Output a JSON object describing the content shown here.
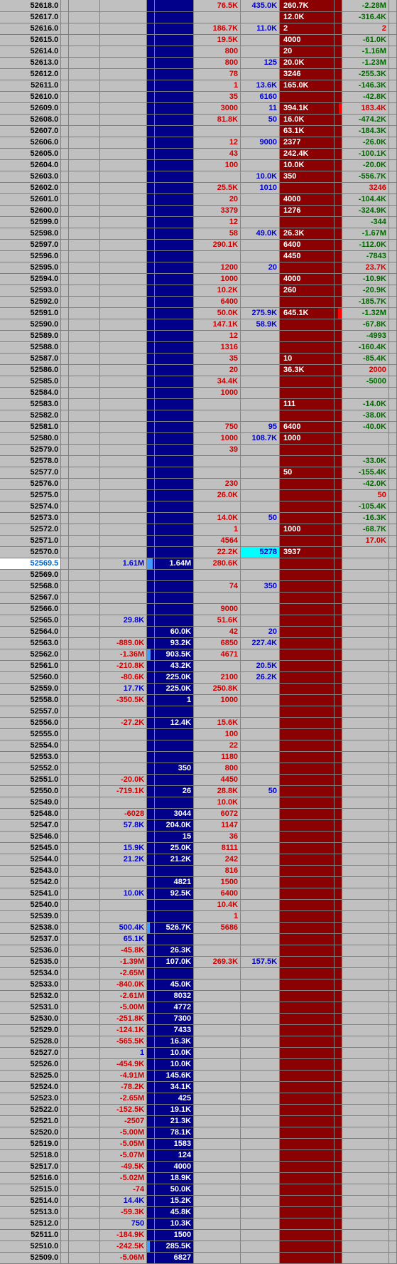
{
  "highlightId": "52569.5",
  "rows": [
    {
      "id": "52618.0",
      "c6": "76.5K",
      "c6c": "#cc0000",
      "c7": "435.0K",
      "c7c": "#0000cc",
      "c8": "260.7K",
      "c10": "-2.28M",
      "c10c": "#006600"
    },
    {
      "id": "52617.0",
      "c8": "12.0K",
      "c10": "-316.4K",
      "c10c": "#006600"
    },
    {
      "id": "52616.0",
      "c6": "186.7K",
      "c6c": "#cc0000",
      "c7": "11.0K",
      "c7c": "#0000cc",
      "c8": "2",
      "c10": "2",
      "c10c": "#cc0000"
    },
    {
      "id": "52615.0",
      "c6": "19.5K",
      "c6c": "#cc0000",
      "c8": "4000",
      "c10": "-61.0K",
      "c10c": "#006600"
    },
    {
      "id": "52614.0",
      "c6": "800",
      "c6c": "#cc0000",
      "c8": "20",
      "c10": "-1.16M",
      "c10c": "#006600"
    },
    {
      "id": "52613.0",
      "c6": "800",
      "c6c": "#cc0000",
      "c7": "125",
      "c7c": "#0000cc",
      "c8": "20.0K",
      "c10": "-1.23M",
      "c10c": "#006600"
    },
    {
      "id": "52612.0",
      "c6": "78",
      "c6c": "#cc0000",
      "c8": "3246",
      "c10": "-255.3K",
      "c10c": "#006600"
    },
    {
      "id": "52611.0",
      "c6": "1",
      "c6c": "#cc0000",
      "c7": "13.6K",
      "c7c": "#0000cc",
      "c8": "165.0K",
      "c10": "-146.3K",
      "c10c": "#006600"
    },
    {
      "id": "52610.0",
      "c6": "35",
      "c6c": "#cc0000",
      "c7": "6160",
      "c7c": "#0000cc",
      "c10": "-42.8K",
      "c10c": "#006600"
    },
    {
      "id": "52609.0",
      "c6": "3000",
      "c6c": "#cc0000",
      "c7": "11",
      "c7c": "#0000cc",
      "c8": "394.1K",
      "c9bar": 4,
      "c10": "183.4K",
      "c10c": "#cc0000"
    },
    {
      "id": "52608.0",
      "c6": "81.8K",
      "c6c": "#cc0000",
      "c7": "50",
      "c7c": "#0000cc",
      "c8": "16.0K",
      "c10": "-474.2K",
      "c10c": "#006600"
    },
    {
      "id": "52607.0",
      "c8": "63.1K",
      "c10": "-184.3K",
      "c10c": "#006600"
    },
    {
      "id": "52606.0",
      "c6": "12",
      "c6c": "#cc0000",
      "c7": "9000",
      "c7c": "#0000cc",
      "c8": "2377",
      "c10": "-26.0K",
      "c10c": "#006600"
    },
    {
      "id": "52605.0",
      "c6": "43",
      "c6c": "#cc0000",
      "c8": "242.4K",
      "c10": "-100.1K",
      "c10c": "#006600"
    },
    {
      "id": "52604.0",
      "c6": "100",
      "c6c": "#cc0000",
      "c8": "10.0K",
      "c10": "-20.0K",
      "c10c": "#006600"
    },
    {
      "id": "52603.0",
      "c7": "10.0K",
      "c7c": "#0000cc",
      "c8": "350",
      "c10": "-556.7K",
      "c10c": "#006600"
    },
    {
      "id": "52602.0",
      "c6": "25.5K",
      "c6c": "#cc0000",
      "c7": "1010",
      "c7c": "#0000cc",
      "c10": "3246",
      "c10c": "#cc0000"
    },
    {
      "id": "52601.0",
      "c6": "20",
      "c6c": "#cc0000",
      "c8": "4000",
      "c10": "-104.4K",
      "c10c": "#006600"
    },
    {
      "id": "52600.0",
      "c6": "3379",
      "c6c": "#cc0000",
      "c8": "1276",
      "c10": "-324.9K",
      "c10c": "#006600"
    },
    {
      "id": "52599.0",
      "c6": "12",
      "c6c": "#cc0000",
      "c10": "-344",
      "c10c": "#006600"
    },
    {
      "id": "52598.0",
      "c6": "58",
      "c6c": "#cc0000",
      "c7": "49.0K",
      "c7c": "#0000cc",
      "c8": "26.3K",
      "c10": "-1.67M",
      "c10c": "#006600"
    },
    {
      "id": "52597.0",
      "c6": "290.1K",
      "c6c": "#cc0000",
      "c8": "6400",
      "c10": "-112.0K",
      "c10c": "#006600"
    },
    {
      "id": "52596.0",
      "c8": "4450",
      "c10": "-7843",
      "c10c": "#006600"
    },
    {
      "id": "52595.0",
      "c6": "1200",
      "c6c": "#cc0000",
      "c7": "20",
      "c7c": "#0000cc",
      "c10": "23.7K",
      "c10c": "#cc0000"
    },
    {
      "id": "52594.0",
      "c6": "1000",
      "c6c": "#cc0000",
      "c8": "4000",
      "c10": "-10.9K",
      "c10c": "#006600"
    },
    {
      "id": "52593.0",
      "c6": "10.2K",
      "c6c": "#cc0000",
      "c8": "260",
      "c10": "-20.9K",
      "c10c": "#006600"
    },
    {
      "id": "52592.0",
      "c6": "6400",
      "c6c": "#cc0000",
      "c10": "-185.7K",
      "c10c": "#006600"
    },
    {
      "id": "52591.0",
      "c6": "50.0K",
      "c6c": "#cc0000",
      "c7": "275.9K",
      "c7c": "#0000cc",
      "c8": "645.1K",
      "c9bar": 5,
      "c10": "-1.32M",
      "c10c": "#006600"
    },
    {
      "id": "52590.0",
      "c6": "147.1K",
      "c6c": "#cc0000",
      "c7": "58.9K",
      "c7c": "#0000cc",
      "c10": "-67.8K",
      "c10c": "#006600"
    },
    {
      "id": "52589.0",
      "c6": "12",
      "c6c": "#cc0000",
      "c10": "-4993",
      "c10c": "#006600"
    },
    {
      "id": "52588.0",
      "c6": "1316",
      "c6c": "#cc0000",
      "c10": "-160.4K",
      "c10c": "#006600"
    },
    {
      "id": "52587.0",
      "c6": "35",
      "c6c": "#cc0000",
      "c8": "10",
      "c10": "-85.4K",
      "c10c": "#006600"
    },
    {
      "id": "52586.0",
      "c6": "20",
      "c6c": "#cc0000",
      "c8": "36.3K",
      "c10": "2000",
      "c10c": "#cc0000"
    },
    {
      "id": "52585.0",
      "c6": "34.4K",
      "c6c": "#cc0000",
      "c10": "-5000",
      "c10c": "#006600"
    },
    {
      "id": "52584.0",
      "c6": "1000",
      "c6c": "#cc0000"
    },
    {
      "id": "52583.0",
      "c8": "111",
      "c10": "-14.0K",
      "c10c": "#006600"
    },
    {
      "id": "52582.0",
      "c10": "-38.0K",
      "c10c": "#006600"
    },
    {
      "id": "52581.0",
      "c6": "750",
      "c6c": "#cc0000",
      "c7": "95",
      "c7c": "#0000cc",
      "c8": "6400",
      "c10": "-40.0K",
      "c10c": "#006600"
    },
    {
      "id": "52580.0",
      "c6": "1000",
      "c6c": "#cc0000",
      "c7": "108.7K",
      "c7c": "#0000cc",
      "c8": "1000"
    },
    {
      "id": "52579.0",
      "c6": "39",
      "c6c": "#cc0000"
    },
    {
      "id": "52578.0",
      "c10": "-33.0K",
      "c10c": "#006600"
    },
    {
      "id": "52577.0",
      "c8": "50",
      "c10": "-155.4K",
      "c10c": "#006600"
    },
    {
      "id": "52576.0",
      "c6": "230",
      "c6c": "#cc0000",
      "c10": "-42.0K",
      "c10c": "#006600"
    },
    {
      "id": "52575.0",
      "c6": "26.0K",
      "c6c": "#cc0000",
      "c10": "50",
      "c10c": "#cc0000"
    },
    {
      "id": "52574.0",
      "c10": "-105.4K",
      "c10c": "#006600"
    },
    {
      "id": "52573.0",
      "c6": "14.0K",
      "c6c": "#cc0000",
      "c7": "50",
      "c7c": "#0000cc",
      "c10": "-16.3K",
      "c10c": "#006600"
    },
    {
      "id": "52572.0",
      "c6": "1",
      "c6c": "#cc0000",
      "c8": "1000",
      "c10": "-68.7K",
      "c10c": "#006600"
    },
    {
      "id": "52571.0",
      "c6": "4564",
      "c6c": "#cc0000",
      "c10": "17.0K",
      "c10c": "#cc0000"
    },
    {
      "id": "52570.0",
      "c6": "22.2K",
      "c6c": "#cc0000",
      "c7": "5278",
      "c7c": "#0000cc",
      "c7hl": "cy",
      "c8": "3937"
    },
    {
      "id": "52569.5",
      "hl": true,
      "c3": "1.61M",
      "c3c": "#0000cc",
      "c4bar": 8,
      "c5": "1.64M",
      "c6": "280.6K",
      "c6c": "#cc0000"
    },
    {
      "id": "52569.0"
    },
    {
      "id": "52568.0",
      "c6": "74",
      "c6c": "#cc0000",
      "c7": "350",
      "c7c": "#0000cc"
    },
    {
      "id": "52567.0"
    },
    {
      "id": "52566.0",
      "c6": "9000",
      "c6c": "#cc0000"
    },
    {
      "id": "52565.0",
      "c3": "29.8K",
      "c3c": "#0000cc",
      "c6": "51.6K",
      "c6c": "#cc0000"
    },
    {
      "id": "52564.0",
      "c5": "60.0K",
      "c6": "42",
      "c6c": "#cc0000",
      "c7": "20",
      "c7c": "#0000cc"
    },
    {
      "id": "52563.0",
      "c3": "-889.0K",
      "c3c": "#cc0000",
      "c5": "93.2K",
      "c6": "6850",
      "c6c": "#cc0000",
      "c7": "227.4K",
      "c7c": "#0000cc"
    },
    {
      "id": "52562.0",
      "c3": "-1.36M",
      "c3c": "#cc0000",
      "c4bar": 5,
      "c5": "903.5K",
      "c6": "4671",
      "c6c": "#cc0000"
    },
    {
      "id": "52561.0",
      "c3": "-210.8K",
      "c3c": "#cc0000",
      "c5": "43.2K",
      "c7": "20.5K",
      "c7c": "#0000cc"
    },
    {
      "id": "52560.0",
      "c3": "-80.6K",
      "c3c": "#cc0000",
      "c5": "225.0K",
      "c6": "2100",
      "c6c": "#cc0000",
      "c7": "26.2K",
      "c7c": "#0000cc"
    },
    {
      "id": "52559.0",
      "c3": "17.7K",
      "c3c": "#0000cc",
      "c5": "225.0K",
      "c6": "250.8K",
      "c6c": "#cc0000"
    },
    {
      "id": "52558.0",
      "c3": "-350.5K",
      "c3c": "#cc0000",
      "c5": "1",
      "c6": "1000",
      "c6c": "#cc0000"
    },
    {
      "id": "52557.0"
    },
    {
      "id": "52556.0",
      "c3": "-27.2K",
      "c3c": "#cc0000",
      "c5": "12.4K",
      "c6": "15.6K",
      "c6c": "#cc0000"
    },
    {
      "id": "52555.0",
      "c6": "100",
      "c6c": "#cc0000"
    },
    {
      "id": "52554.0",
      "c6": "22",
      "c6c": "#cc0000"
    },
    {
      "id": "52553.0",
      "c6": "1180",
      "c6c": "#cc0000"
    },
    {
      "id": "52552.0",
      "c5": "350",
      "c6": "800",
      "c6c": "#cc0000"
    },
    {
      "id": "52551.0",
      "c3": "-20.0K",
      "c3c": "#cc0000",
      "c6": "4450",
      "c6c": "#cc0000"
    },
    {
      "id": "52550.0",
      "c3": "-719.1K",
      "c3c": "#cc0000",
      "c5": "26",
      "c6": "28.8K",
      "c6c": "#cc0000",
      "c7": "50",
      "c7c": "#0000cc"
    },
    {
      "id": "52549.0",
      "c6": "10.0K",
      "c6c": "#cc0000"
    },
    {
      "id": "52548.0",
      "c3": "-6028",
      "c3c": "#cc0000",
      "c5": "3044",
      "c6": "6072",
      "c6c": "#cc0000"
    },
    {
      "id": "52547.0",
      "c3": "57.8K",
      "c3c": "#0000cc",
      "c5": "204.0K",
      "c6": "1147",
      "c6c": "#cc0000"
    },
    {
      "id": "52546.0",
      "c5": "15",
      "c6": "36",
      "c6c": "#cc0000"
    },
    {
      "id": "52545.0",
      "c3": "15.9K",
      "c3c": "#0000cc",
      "c5": "25.0K",
      "c6": "8111",
      "c6c": "#cc0000"
    },
    {
      "id": "52544.0",
      "c3": "21.2K",
      "c3c": "#0000cc",
      "c5": "21.2K",
      "c6": "242",
      "c6c": "#cc0000"
    },
    {
      "id": "52543.0",
      "c6": "816",
      "c6c": "#cc0000"
    },
    {
      "id": "52542.0",
      "c5": "4821",
      "c6": "1500",
      "c6c": "#cc0000"
    },
    {
      "id": "52541.0",
      "c3": "10.0K",
      "c3c": "#0000cc",
      "c5": "92.5K",
      "c6": "6400",
      "c6c": "#cc0000"
    },
    {
      "id": "52540.0",
      "c6": "10.4K",
      "c6c": "#cc0000"
    },
    {
      "id": "52539.0",
      "c6": "1",
      "c6c": "#cc0000"
    },
    {
      "id": "52538.0",
      "c3": "500.4K",
      "c3c": "#0000cc",
      "c4bar": 4,
      "c5": "526.7K",
      "c6": "5686",
      "c6c": "#cc0000"
    },
    {
      "id": "52537.0",
      "c3": "65.1K",
      "c3c": "#0000cc"
    },
    {
      "id": "52536.0",
      "c3": "-45.8K",
      "c3c": "#cc0000",
      "c5": "26.3K"
    },
    {
      "id": "52535.0",
      "c3": "-1.39M",
      "c3c": "#cc0000",
      "c5": "107.0K",
      "c6": "269.3K",
      "c6c": "#cc0000",
      "c7": "157.5K",
      "c7c": "#0000cc"
    },
    {
      "id": "52534.0",
      "c3": "-2.65M",
      "c3c": "#cc0000"
    },
    {
      "id": "52533.0",
      "c3": "-840.0K",
      "c3c": "#cc0000",
      "c5": "45.0K"
    },
    {
      "id": "52532.0",
      "c3": "-2.61M",
      "c3c": "#cc0000",
      "c5": "8032"
    },
    {
      "id": "52531.0",
      "c3": "-5.00M",
      "c3c": "#cc0000",
      "c5": "4772"
    },
    {
      "id": "52530.0",
      "c3": "-251.8K",
      "c3c": "#cc0000",
      "c5": "7300"
    },
    {
      "id": "52529.0",
      "c3": "-124.1K",
      "c3c": "#cc0000",
      "c5": "7433"
    },
    {
      "id": "52528.0",
      "c3": "-565.5K",
      "c3c": "#cc0000",
      "c5": "16.3K"
    },
    {
      "id": "52527.0",
      "c3": "1",
      "c3c": "#0000cc",
      "c5": "10.0K"
    },
    {
      "id": "52526.0",
      "c3": "-454.9K",
      "c3c": "#cc0000",
      "c5": "10.0K"
    },
    {
      "id": "52525.0",
      "c3": "-4.91M",
      "c3c": "#cc0000",
      "c5": "145.6K"
    },
    {
      "id": "52524.0",
      "c3": "-78.2K",
      "c3c": "#cc0000",
      "c5": "34.1K"
    },
    {
      "id": "52523.0",
      "c3": "-2.65M",
      "c3c": "#cc0000",
      "c5": "425"
    },
    {
      "id": "52522.0",
      "c3": "-152.5K",
      "c3c": "#cc0000",
      "c5": "19.1K"
    },
    {
      "id": "52521.0",
      "c3": "-2507",
      "c3c": "#cc0000",
      "c5": "21.3K"
    },
    {
      "id": "52520.0",
      "c3": "-5.00M",
      "c3c": "#cc0000",
      "c5": "78.1K"
    },
    {
      "id": "52519.0",
      "c3": "-5.05M",
      "c3c": "#cc0000",
      "c5": "1583"
    },
    {
      "id": "52518.0",
      "c3": "-5.07M",
      "c3c": "#cc0000",
      "c5": "124"
    },
    {
      "id": "52517.0",
      "c3": "-49.5K",
      "c3c": "#cc0000",
      "c5": "4000"
    },
    {
      "id": "52516.0",
      "c3": "-5.02M",
      "c3c": "#cc0000",
      "c5": "18.9K"
    },
    {
      "id": "52515.0",
      "c3": "-74",
      "c3c": "#cc0000",
      "c5": "50.0K"
    },
    {
      "id": "52514.0",
      "c3": "14.4K",
      "c3c": "#0000cc",
      "c5": "15.2K"
    },
    {
      "id": "52513.0",
      "c3": "-59.3K",
      "c3c": "#cc0000",
      "c5": "45.8K"
    },
    {
      "id": "52512.0",
      "c3": "750",
      "c3c": "#0000cc",
      "c5": "10.3K"
    },
    {
      "id": "52511.0",
      "c3": "-184.9K",
      "c3c": "#cc0000",
      "c5": "1500"
    },
    {
      "id": "52510.0",
      "c3": "-242.5K",
      "c3c": "#cc0000",
      "c4bar": 4,
      "c5": "285.5K"
    },
    {
      "id": "52509.0",
      "c3": "-5.06M",
      "c3c": "#cc0000",
      "c5": "6827"
    }
  ]
}
